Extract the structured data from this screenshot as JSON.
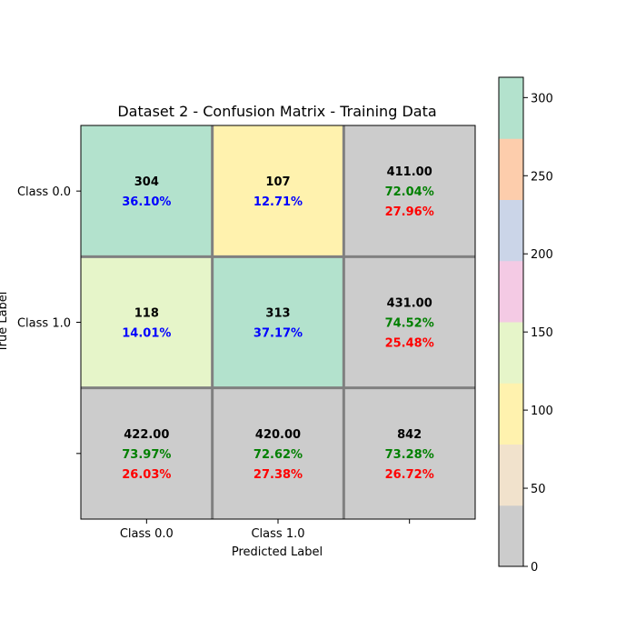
{
  "chart_data": {
    "type": "heatmap",
    "title": "Dataset 2 - Confusion Matrix - Training Data",
    "xlabel": "Predicted Label",
    "ylabel": "True Label",
    "x_tick_labels": [
      "Class 0.0",
      "Class 1.0",
      ""
    ],
    "y_tick_labels": [
      "Class 0.0",
      "Class 1.0",
      ""
    ],
    "cells": [
      [
        {
          "lines": [
            "304",
            "36.10%"
          ],
          "colors": [
            "#000000",
            "#0000ff"
          ],
          "fill": "#b3e2cd"
        },
        {
          "lines": [
            "107",
            "12.71%"
          ],
          "colors": [
            "#000000",
            "#0000ff"
          ],
          "fill": "#fff2ae"
        },
        {
          "lines": [
            "411.00",
            "72.04%",
            "27.96%"
          ],
          "colors": [
            "#000000",
            "#008000",
            "#ff0000"
          ],
          "fill": "#cccccc"
        }
      ],
      [
        {
          "lines": [
            "118",
            "14.01%"
          ],
          "colors": [
            "#000000",
            "#0000ff"
          ],
          "fill": "#e6f5c9"
        },
        {
          "lines": [
            "313",
            "37.17%"
          ],
          "colors": [
            "#000000",
            "#0000ff"
          ],
          "fill": "#b3e2cd"
        },
        {
          "lines": [
            "431.00",
            "74.52%",
            "25.48%"
          ],
          "colors": [
            "#000000",
            "#008000",
            "#ff0000"
          ],
          "fill": "#cccccc"
        }
      ],
      [
        {
          "lines": [
            "422.00",
            "73.97%",
            "26.03%"
          ],
          "colors": [
            "#000000",
            "#008000",
            "#ff0000"
          ],
          "fill": "#cccccc"
        },
        {
          "lines": [
            "420.00",
            "72.62%",
            "27.38%"
          ],
          "colors": [
            "#000000",
            "#008000",
            "#ff0000"
          ],
          "fill": "#cccccc"
        },
        {
          "lines": [
            "842",
            "73.28%",
            "26.72%"
          ],
          "colors": [
            "#000000",
            "#008000",
            "#ff0000"
          ],
          "fill": "#cccccc"
        }
      ]
    ],
    "colorbar": {
      "range": [
        0,
        313
      ],
      "ticks": [
        "0",
        "50",
        "100",
        "150",
        "200",
        "250",
        "300"
      ],
      "tick_values": [
        0,
        50,
        100,
        150,
        200,
        250,
        300
      ],
      "colors": [
        "#cccccc",
        "#f1e2cc",
        "#fff2ae",
        "#e6f5c9",
        "#f4cae4",
        "#cbd5e8",
        "#fdcdac",
        "#b3e2cd"
      ]
    },
    "grid_color": "#808080"
  }
}
